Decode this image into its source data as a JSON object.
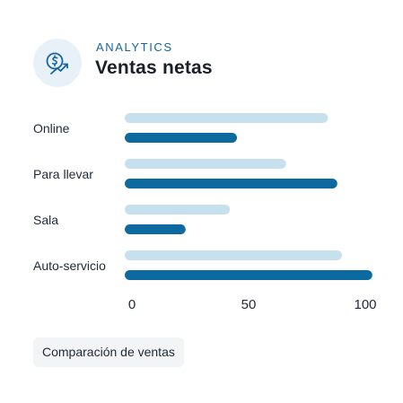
{
  "header": {
    "eyebrow": "ANALYTICS",
    "title": "Ventas netas",
    "icon": "dollar-trend-up-icon"
  },
  "footer": {
    "compare_label": "Comparación de ventas"
  },
  "colors": {
    "light_bar": "#c6e0ee",
    "dark_bar": "#0d6aa0",
    "accent": "#1565a3",
    "icon_bg": "#e8f1f8"
  },
  "chart_data": {
    "type": "bar",
    "orientation": "horizontal",
    "categories": [
      "Online",
      "Para llevar",
      "Sala",
      "Auto-servicio"
    ],
    "series": [
      {
        "values": [
          84,
          66,
          42,
          90
        ]
      },
      {
        "values": [
          45,
          88,
          23,
          103
        ]
      }
    ],
    "xticks": [
      0,
      50,
      100
    ],
    "xlim": [
      0,
      103
    ],
    "grid": false,
    "title": "",
    "xlabel": "",
    "ylabel": ""
  }
}
